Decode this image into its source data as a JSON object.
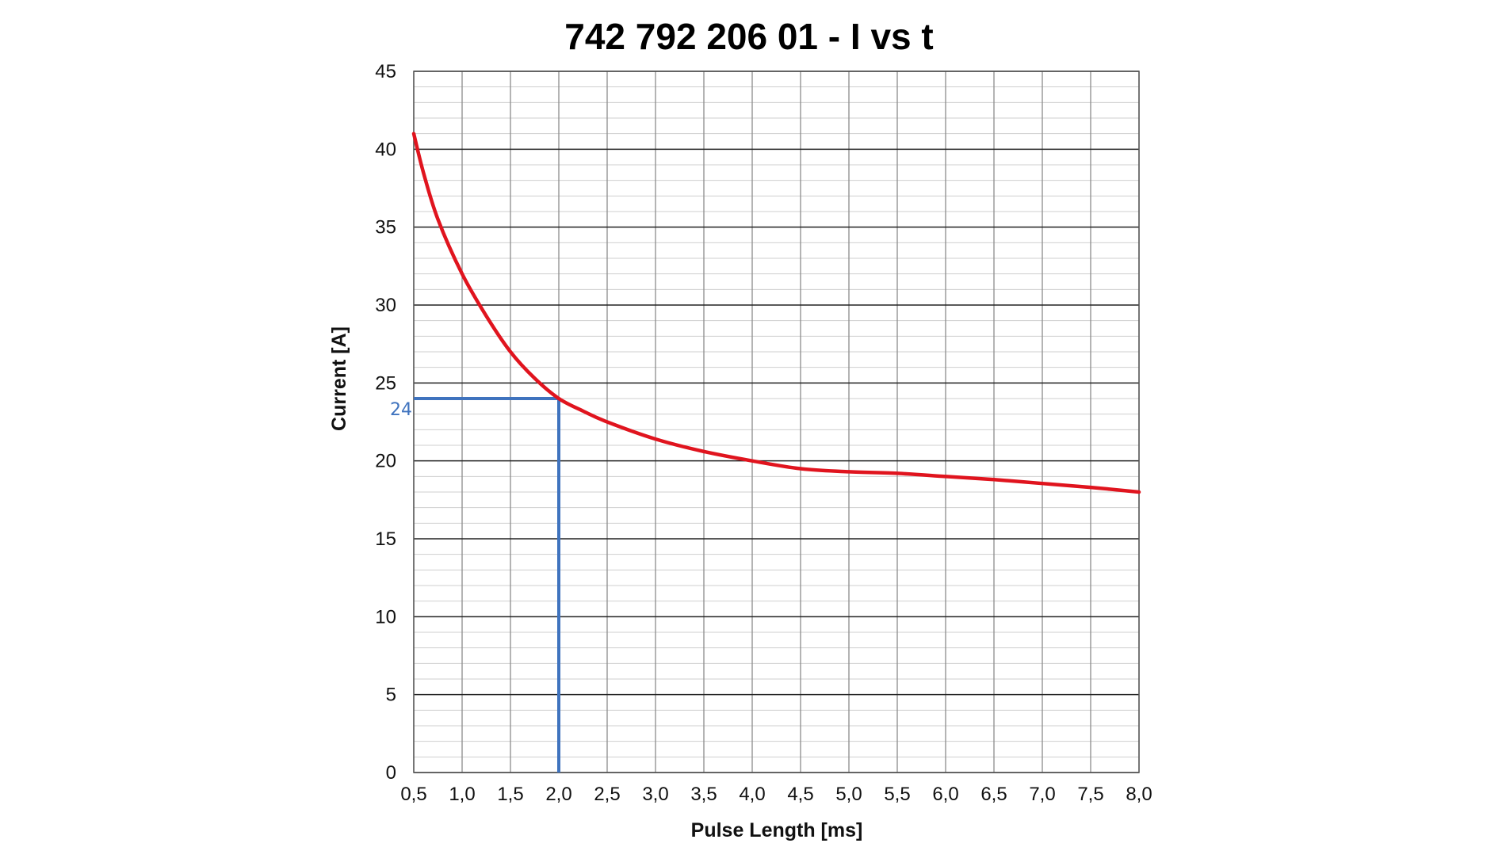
{
  "chart_data": {
    "type": "line",
    "title": "742 792 206 01  -  I vs t",
    "xlabel": "Pulse Length [ms]",
    "ylabel": "Current [A]",
    "xlim": [
      0.5,
      8.0
    ],
    "ylim": [
      0,
      45
    ],
    "x_ticks": [
      "0,5",
      "1,0",
      "1,5",
      "2,0",
      "2,5",
      "3,0",
      "3,5",
      "4,0",
      "4,5",
      "5,0",
      "5,5",
      "6,0",
      "6,5",
      "7,0",
      "7,5",
      "8,0"
    ],
    "y_ticks": [
      "0",
      "5",
      "10",
      "15",
      "20",
      "25",
      "30",
      "35",
      "40",
      "45"
    ],
    "x_tick_values": [
      0.5,
      1.0,
      1.5,
      2.0,
      2.5,
      3.0,
      3.5,
      4.0,
      4.5,
      5.0,
      5.5,
      6.0,
      6.5,
      7.0,
      7.5,
      8.0
    ],
    "y_tick_values": [
      0,
      5,
      10,
      15,
      20,
      25,
      30,
      35,
      40,
      45
    ],
    "grid": true,
    "minor_y_step": 1,
    "series": [
      {
        "color": "#e0141e",
        "x": [
          0.5,
          0.6,
          0.75,
          1.0,
          1.25,
          1.5,
          1.75,
          2.0,
          2.25,
          2.5,
          3.0,
          3.5,
          4.0,
          4.5,
          5.0,
          5.5,
          6.0,
          6.5,
          7.0,
          7.5,
          8.0
        ],
        "y": [
          41.0,
          38.5,
          35.5,
          32.0,
          29.3,
          27.0,
          25.3,
          24.0,
          23.2,
          22.5,
          21.4,
          20.6,
          20.0,
          19.5,
          19.3,
          19.2,
          19.0,
          18.8,
          18.55,
          18.3,
          18.0
        ]
      }
    ],
    "annotation": {
      "x": 2.0,
      "y": 24,
      "label": "24",
      "color": "#3f73be"
    }
  }
}
